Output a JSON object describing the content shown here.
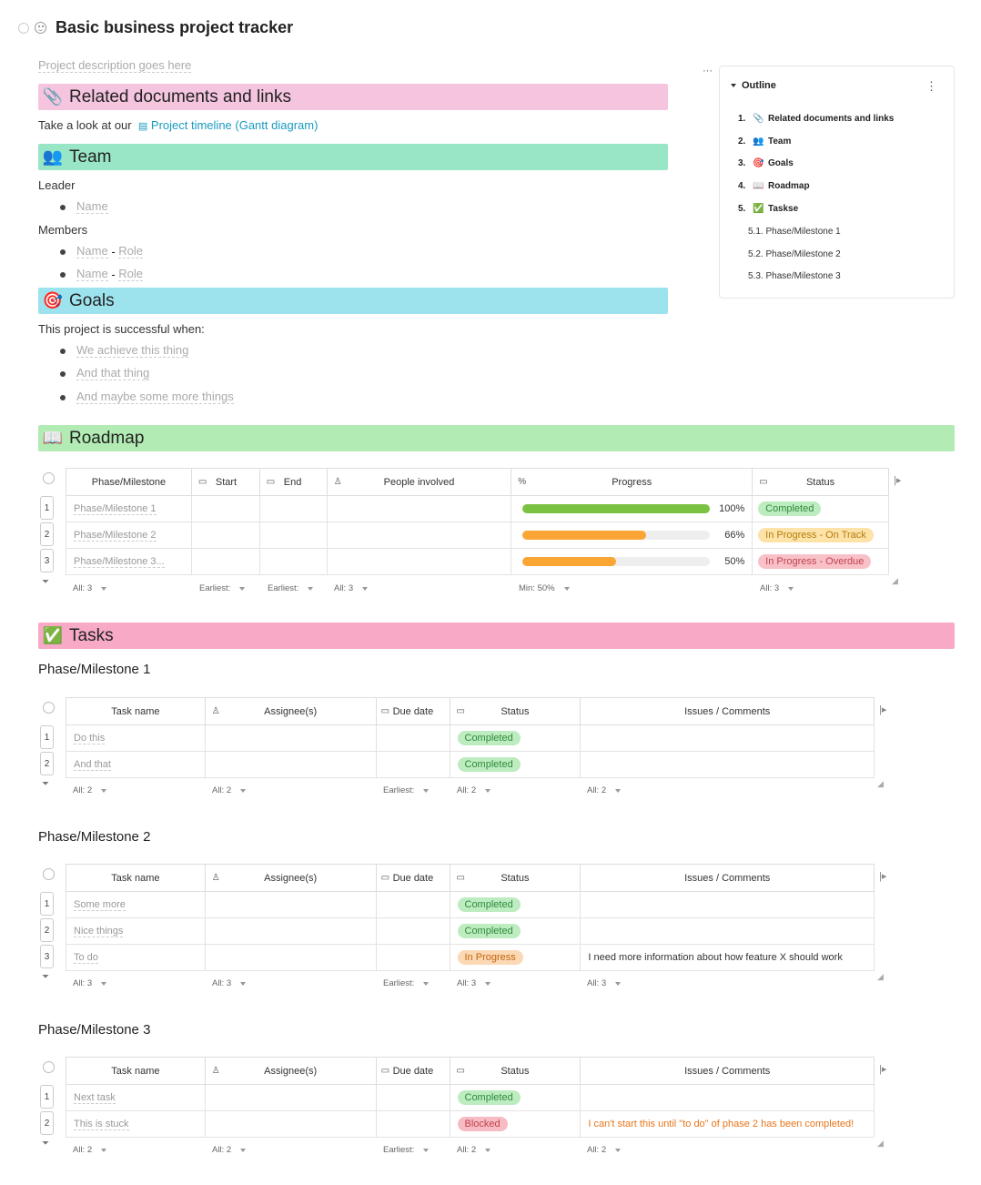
{
  "page": {
    "title": "Basic business project tracker",
    "description": "Project description goes here"
  },
  "sections": {
    "docs": {
      "emoji": "📎",
      "title": "Related documents and links",
      "intro": "Take a look at our",
      "link": "Project timeline (Gantt diagram)"
    },
    "team": {
      "emoji": "👥",
      "title": "Team",
      "leader_label": "Leader",
      "leader_name": "Name",
      "members_label": "Members",
      "member_name": "Name",
      "member_sep": "-",
      "member_role": "Role"
    },
    "goals": {
      "emoji": "🎯",
      "title": "Goals",
      "intro": "This project is successful when:",
      "items": [
        "We achieve this thing",
        "And that thing",
        "And maybe some more things"
      ]
    },
    "roadmap": {
      "emoji": "📖",
      "title": "Roadmap"
    },
    "tasks": {
      "emoji": "✅",
      "title": "Tasks"
    }
  },
  "outline": {
    "title": "Outline",
    "items": [
      {
        "num": "1.",
        "emoji": "📎",
        "label": "Related documents and links"
      },
      {
        "num": "2.",
        "emoji": "👥",
        "label": "Team"
      },
      {
        "num": "3.",
        "emoji": "🎯",
        "label": "Goals"
      },
      {
        "num": "4.",
        "emoji": "📖",
        "label": "Roadmap"
      },
      {
        "num": "5.",
        "emoji": "✅",
        "label": "Taskse"
      }
    ],
    "subitems": [
      "5.1. Phase/Milestone 1",
      "5.2. Phase/Milestone 2",
      "5.3. Phase/Milestone 3"
    ]
  },
  "roadmap_table": {
    "headers": [
      "Phase/Milestone",
      "Start",
      "End",
      "People involved",
      "Progress",
      "Status"
    ],
    "rows": [
      {
        "n": "1",
        "phase": "Phase/Milestone 1",
        "progress": 100,
        "progress_label": "100%",
        "status": "Completed"
      },
      {
        "n": "2",
        "phase": "Phase/Milestone 2",
        "progress": 66,
        "progress_label": "66%",
        "status": "In Progress - On Track"
      },
      {
        "n": "3",
        "phase": "Phase/Milestone 3...",
        "progress": 50,
        "progress_label": "50%",
        "status": "In Progress - Overdue"
      }
    ],
    "footer": [
      "All: 3",
      "Earliest:",
      "Earliest:",
      "All: 3",
      "Min: 50%",
      "All: 3"
    ]
  },
  "task_tables": [
    {
      "title": "Phase/Milestone 1",
      "headers": [
        "Task name",
        "Assignee(s)",
        "Due date",
        "Status",
        "Issues / Comments"
      ],
      "rows": [
        {
          "n": "1",
          "task": "Do this",
          "status": "Completed",
          "comment": ""
        },
        {
          "n": "2",
          "task": "And that",
          "status": "Completed",
          "comment": ""
        }
      ],
      "footer": [
        "All: 2",
        "All: 2",
        "Earliest:",
        "All: 2",
        "All: 2"
      ]
    },
    {
      "title": "Phase/Milestone 2",
      "headers": [
        "Task name",
        "Assignee(s)",
        "Due date",
        "Status",
        "Issues / Comments"
      ],
      "rows": [
        {
          "n": "1",
          "task": "Some more",
          "status": "Completed",
          "comment": ""
        },
        {
          "n": "2",
          "task": "Nice things",
          "status": "Completed",
          "comment": ""
        },
        {
          "n": "3",
          "task": "To do",
          "status": "In Progress",
          "comment": "I need more information about how feature X should work"
        }
      ],
      "footer": [
        "All: 3",
        "All: 3",
        "Earliest:",
        "All: 3",
        "All: 3"
      ]
    },
    {
      "title": "Phase/Milestone 3",
      "headers": [
        "Task name",
        "Assignee(s)",
        "Due date",
        "Status",
        "Issues / Comments"
      ],
      "rows": [
        {
          "n": "1",
          "task": "Next task",
          "status": "Completed",
          "comment": ""
        },
        {
          "n": "2",
          "task": "This is stuck",
          "status": "Blocked",
          "comment": "I can't start this until \"to do\" of phase 2 has been completed!"
        }
      ],
      "footer": [
        "All: 2",
        "All: 2",
        "Earliest:",
        "All: 2",
        "All: 2"
      ]
    }
  ],
  "status_colors": {
    "Completed": {
      "bg": "#bdecc0",
      "fg": "#2e8a3a"
    },
    "In Progress - On Track": {
      "bg": "#fde3a7",
      "fg": "#b57b0c"
    },
    "In Progress - Overdue": {
      "bg": "#f8c1c8",
      "fg": "#c2414f"
    },
    "In Progress": {
      "bg": "#fcd8b5",
      "fg": "#c0660f"
    },
    "Blocked": {
      "bg": "#f7bcc3",
      "fg": "#c2414f"
    }
  },
  "progress_colors": {
    "complete": "#7cc242",
    "partial": "#fba534"
  }
}
